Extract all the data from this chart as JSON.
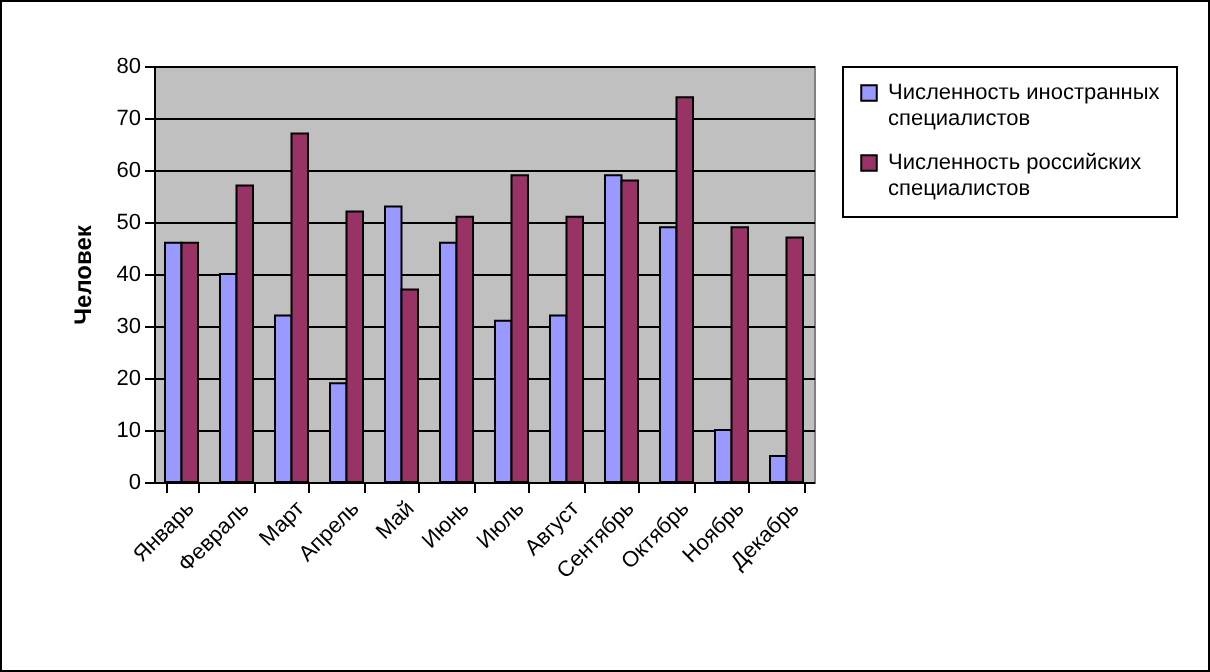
{
  "chart_data": {
    "type": "bar",
    "ylabel": "Человек",
    "categories": [
      "Январь",
      "Февраль",
      "Март",
      "Апрель",
      "Май",
      "Июнь",
      "Июль",
      "Август",
      "Сентябрь",
      "Октябрь",
      "Ноябрь",
      "Декабрь"
    ],
    "series": [
      {
        "name": "Численность иностранных специалистов",
        "color": "#9999ff",
        "values": [
          46,
          40,
          32,
          19,
          53,
          46,
          31,
          32,
          59,
          49,
          10,
          5
        ]
      },
      {
        "name": "Численность российских специалистов",
        "color": "#993366",
        "values": [
          46,
          57,
          67,
          52,
          37,
          51,
          59,
          51,
          58,
          74,
          49,
          47
        ]
      }
    ],
    "ylim": [
      0,
      80
    ],
    "yticks": [
      0,
      10,
      20,
      30,
      40,
      50,
      60,
      70,
      80
    ],
    "grid": "y",
    "legend": "right"
  }
}
